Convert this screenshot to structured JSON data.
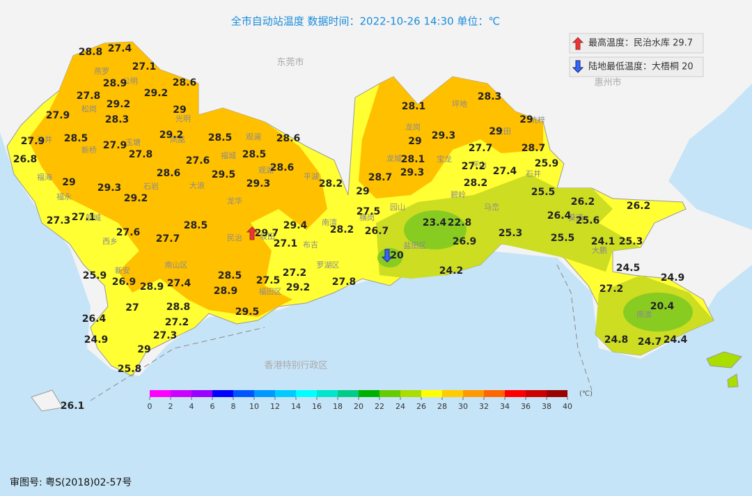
{
  "title": "全市自动站温度  数据时间：2022-10-26 14:30  单位：℃",
  "legend": {
    "max": "最高温度：民治水库 29.7",
    "min": "陆地最低温度：大梧桐 20"
  },
  "regions": [
    "东莞市",
    "惠州市",
    "香港特别行政区"
  ],
  "places": [
    "燕罗",
    "公明",
    "松岗",
    "光明",
    "沙井",
    "新桥",
    "玉塘",
    "凤凰",
    "观澜",
    "福城",
    "观湖",
    "坪地",
    "龙岗",
    "坑梓",
    "龙田",
    "龙城",
    "宝龙",
    "碧岭",
    "马峦",
    "石井",
    "坪山",
    "福海",
    "福永",
    "航城",
    "石岩",
    "大浪",
    "龙华",
    "平湖",
    "南湾",
    "横岗",
    "园山",
    "民治",
    "坂田",
    "布吉",
    "西乡",
    "新安",
    "南山区",
    "罗湖区",
    "福田区",
    "盐田区",
    "葵涌",
    "大鹏",
    "南澳"
  ],
  "stations": [
    28.8,
    27.4,
    27.1,
    28.9,
    28.6,
    29.2,
    27.8,
    29.2,
    28.3,
    29,
    27.9,
    27.9,
    28.5,
    29.2,
    28.5,
    28.6,
    27.9,
    27.8,
    27.6,
    28.5,
    26.8,
    28.6,
    28.6,
    29.5,
    29,
    29.3,
    29.3,
    28.2,
    29.2,
    27.1,
    27.3,
    28.5,
    29.4,
    28.2,
    27.6,
    29.7,
    27.1,
    27.7,
    25.9,
    26.9,
    28.9,
    27.4,
    28.5,
    27.2,
    27.5,
    28.9,
    29.2,
    27.8,
    27,
    28.8,
    26.4,
    27.2,
    29.5,
    27.3,
    24.9,
    29,
    25.8,
    26.1,
    28.3,
    28.1,
    29,
    29,
    29.3,
    29,
    27.7,
    28.7,
    28.1,
    27.2,
    29.3,
    27.4,
    25.9,
    28.7,
    28.2,
    29,
    25.5,
    27.5,
    26.2,
    26.2,
    26.4,
    25.6,
    23.4,
    22.8,
    26.7,
    25.3,
    25.5,
    24.1,
    25.3,
    26.9,
    20,
    24.2,
    24.5,
    24.9,
    27.2,
    20.4,
    24.8,
    24.7,
    24.4
  ],
  "colorbar": {
    "unit": "(℃)",
    "ticks": [
      0,
      2,
      4,
      6,
      8,
      10,
      12,
      14,
      16,
      18,
      20,
      22,
      24,
      26,
      28,
      30,
      32,
      34,
      36,
      38,
      40
    ],
    "colors": [
      "#ff00ff",
      "#cc00ff",
      "#9900ff",
      "#0000ff",
      "#0055ff",
      "#0099ff",
      "#00ccff",
      "#00ffff",
      "#00e5cc",
      "#00cc88",
      "#00b000",
      "#66cc00",
      "#aadd00",
      "#ffff00",
      "#ffcc00",
      "#ff9900",
      "#ff6600",
      "#ff0000",
      "#cc0000",
      "#990000"
    ]
  },
  "approval": "审图号:  粤S(2018)02-57号"
}
